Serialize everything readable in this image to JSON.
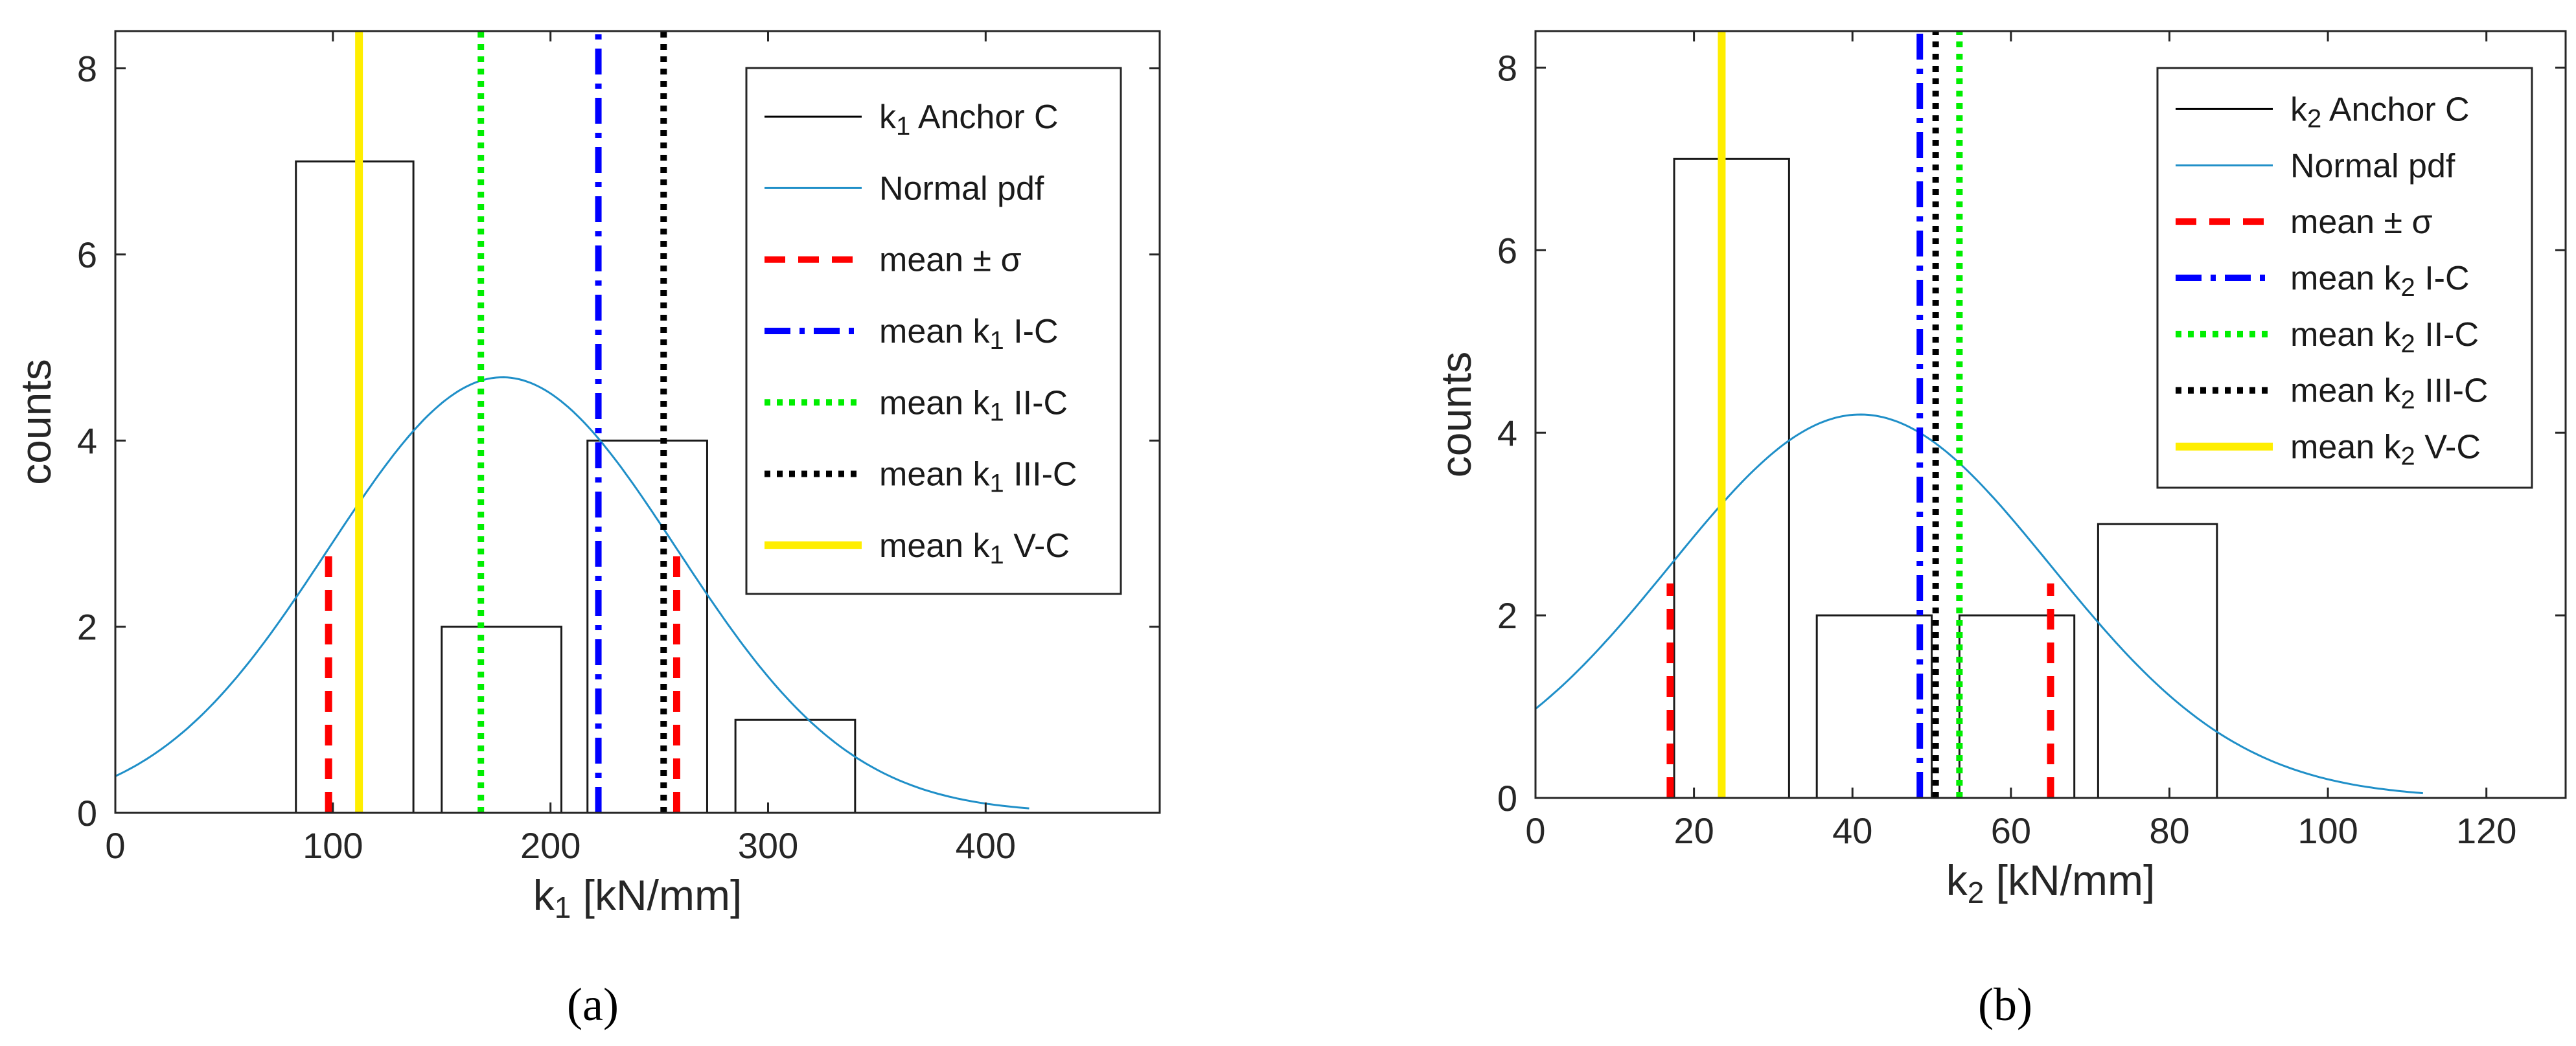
{
  "chart_data": [
    {
      "type": "histogram",
      "caption": "(a)",
      "xlabel_main": "k",
      "xlabel_sub": "1",
      "xlabel_rest": " [kN/mm]",
      "ylabel": "counts",
      "xlim": [
        0,
        480
      ],
      "ylim": [
        0,
        8.4
      ],
      "xticks": [
        0,
        100,
        200,
        300,
        400
      ],
      "yticks": [
        0,
        2,
        4,
        6,
        8
      ],
      "bars": [
        {
          "x0": 83,
          "x1": 137,
          "count": 7
        },
        {
          "x0": 150,
          "x1": 205,
          "count": 2
        },
        {
          "x0": 217,
          "x1": 272,
          "count": 4
        },
        {
          "x0": 285,
          "x1": 340,
          "count": 1
        }
      ],
      "normal_pdf": {
        "mean": 178,
        "sigma": 80,
        "peak": 4.68,
        "x_start": 0,
        "x_end": 420,
        "color": "#1f8fc8"
      },
      "lines": [
        {
          "key": "sigma_lo",
          "x": 98,
          "y_top": 2.85,
          "color": "#ff0000",
          "dash": "dashed",
          "width": 11
        },
        {
          "key": "sigma_hi",
          "x": 258,
          "y_top": 2.85,
          "color": "#ff0000",
          "dash": "dashed",
          "width": 11
        },
        {
          "key": "I",
          "x": 222,
          "y_top": 8.4,
          "color": "#0000ff",
          "dash": "dashdot",
          "width": 10
        },
        {
          "key": "II",
          "x": 168,
          "y_top": 8.4,
          "color": "#00ee00",
          "dash": "dotted",
          "width": 10
        },
        {
          "key": "III",
          "x": 252,
          "y_top": 8.4,
          "color": "#000000",
          "dash": "dotted",
          "width": 10
        },
        {
          "key": "V",
          "x": 112,
          "y_top": 8.4,
          "color": "#ffee00",
          "dash": "solid",
          "width": 12
        }
      ],
      "legend": [
        {
          "pre": "k",
          "sub": "1",
          "post": " Anchor C",
          "color": "#000000",
          "dash": "solid",
          "width": 3
        },
        {
          "pre": "Normal pdf",
          "sub": "",
          "post": "",
          "color": "#1f8fc8",
          "dash": "solid",
          "width": 3
        },
        {
          "pre": "mean ± σ",
          "sub": "",
          "post": "",
          "color": "#ff0000",
          "dash": "dashed",
          "width": 10
        },
        {
          "pre": "mean k",
          "sub": "1",
          "post": " I-C",
          "color": "#0000ff",
          "dash": "dashdot",
          "width": 10
        },
        {
          "pre": "mean k",
          "sub": "1",
          "post": " II-C",
          "color": "#00ee00",
          "dash": "dotted",
          "width": 10
        },
        {
          "pre": "mean k",
          "sub": "1",
          "post": " III-C",
          "color": "#000000",
          "dash": "dotted",
          "width": 10
        },
        {
          "pre": "mean k",
          "sub": "1",
          "post": " V-C",
          "color": "#ffee00",
          "dash": "solid",
          "width": 12
        }
      ]
    },
    {
      "type": "histogram",
      "caption": "(b)",
      "xlabel_main": "k",
      "xlabel_sub": "2",
      "xlabel_rest": " [kN/mm]",
      "ylabel": "counts",
      "xlim": [
        0,
        130
      ],
      "ylim": [
        0,
        8.4
      ],
      "xticks": [
        0,
        20,
        40,
        60,
        80,
        100,
        120
      ],
      "yticks": [
        0,
        2,
        4,
        6,
        8
      ],
      "bars": [
        {
          "x0": 17.5,
          "x1": 32,
          "count": 7
        },
        {
          "x0": 35.5,
          "x1": 50,
          "count": 2
        },
        {
          "x0": 53.5,
          "x1": 68,
          "count": 2
        },
        {
          "x0": 71,
          "x1": 86,
          "count": 3
        }
      ],
      "normal_pdf": {
        "mean": 41,
        "sigma": 24,
        "peak": 4.2,
        "x_start": 0,
        "x_end": 112,
        "color": "#1f8fc8"
      },
      "lines": [
        {
          "key": "sigma_lo",
          "x": 17,
          "y_top": 2.35,
          "color": "#ff0000",
          "dash": "dashed",
          "width": 11
        },
        {
          "key": "sigma_hi",
          "x": 65,
          "y_top": 2.35,
          "color": "#ff0000",
          "dash": "dashed",
          "width": 11
        },
        {
          "key": "I",
          "x": 48.5,
          "y_top": 8.4,
          "color": "#0000ff",
          "dash": "dashdot",
          "width": 10
        },
        {
          "key": "II",
          "x": 53.5,
          "y_top": 8.4,
          "color": "#00ee00",
          "dash": "dotted",
          "width": 10
        },
        {
          "key": "III",
          "x": 50.5,
          "y_top": 8.4,
          "color": "#000000",
          "dash": "dotted",
          "width": 10
        },
        {
          "key": "V",
          "x": 23.5,
          "y_top": 8.4,
          "color": "#ffee00",
          "dash": "solid",
          "width": 12
        }
      ],
      "legend": [
        {
          "pre": "k",
          "sub": "2",
          "post": " Anchor C",
          "color": "#000000",
          "dash": "solid",
          "width": 3
        },
        {
          "pre": "Normal pdf",
          "sub": "",
          "post": "",
          "color": "#1f8fc8",
          "dash": "solid",
          "width": 3
        },
        {
          "pre": "mean ± σ",
          "sub": "",
          "post": "",
          "color": "#ff0000",
          "dash": "dashed",
          "width": 10
        },
        {
          "pre": "mean k",
          "sub": "2",
          "post": " I-C",
          "color": "#0000ff",
          "dash": "dashdot",
          "width": 10
        },
        {
          "pre": "mean k",
          "sub": "2",
          "post": " II-C",
          "color": "#00ee00",
          "dash": "dotted",
          "width": 10
        },
        {
          "pre": "mean k",
          "sub": "2",
          "post": " III-C",
          "color": "#000000",
          "dash": "dotted",
          "width": 10
        },
        {
          "pre": "mean k",
          "sub": "2",
          "post": " V-C",
          "color": "#ffee00",
          "dash": "solid",
          "width": 12
        }
      ]
    }
  ]
}
